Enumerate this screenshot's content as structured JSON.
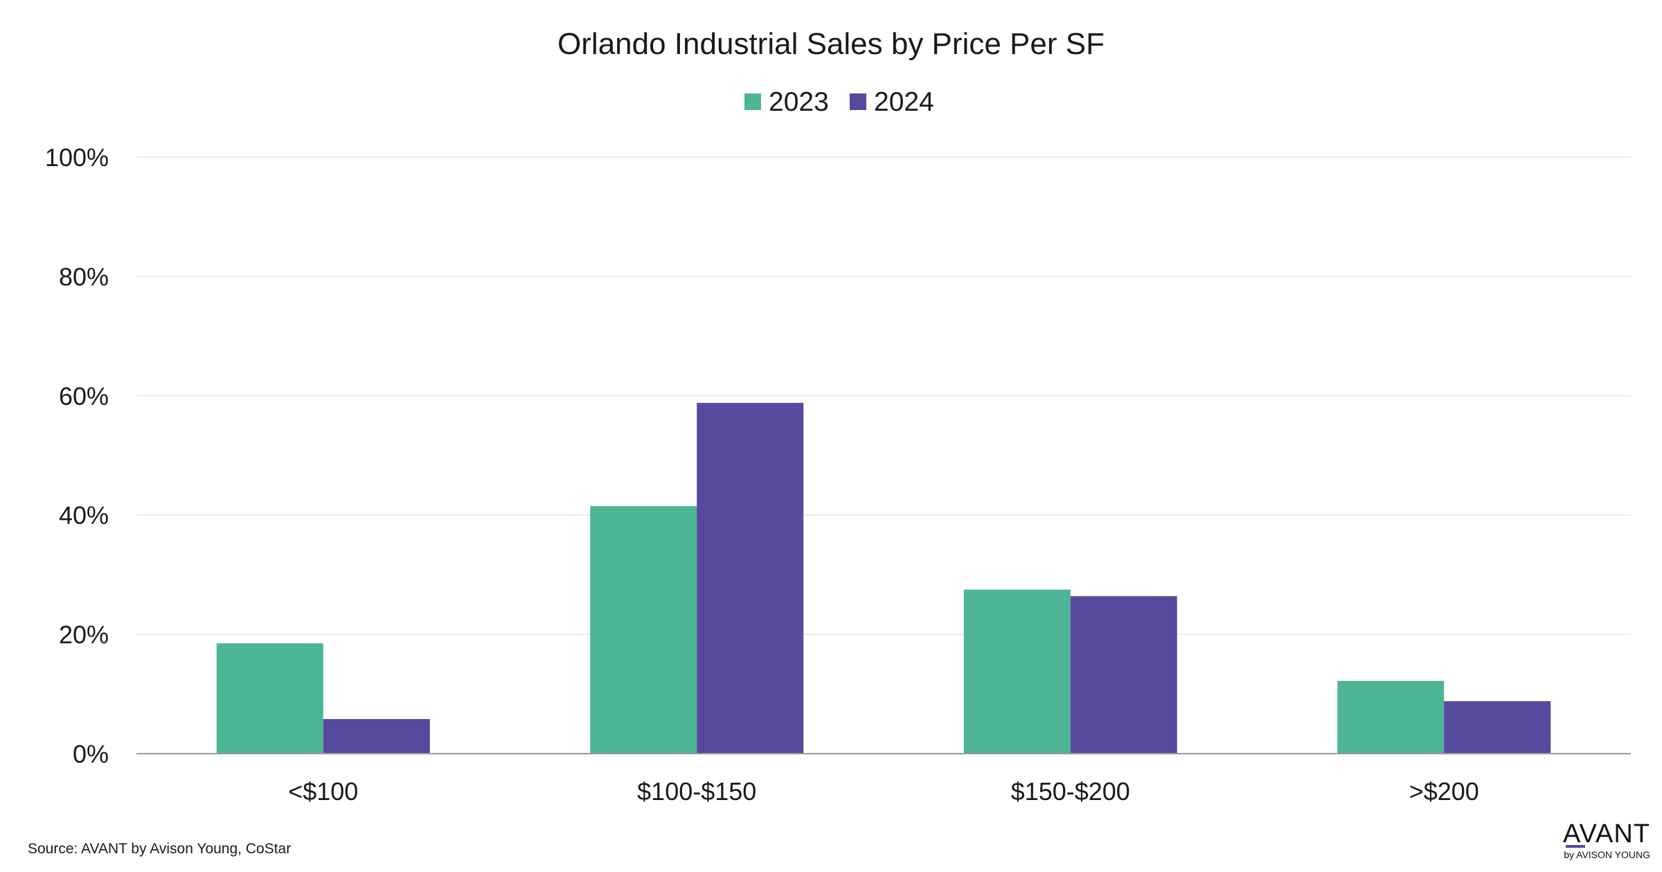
{
  "chart_data": {
    "type": "bar",
    "title": "Orlando Industrial Sales by Price Per SF",
    "categories": [
      "<$100",
      "$100-$150",
      "$150-$200",
      ">$200"
    ],
    "series": [
      {
        "name": "2023",
        "color": "#4db595",
        "values": [
          18.5,
          41.5,
          27.5,
          12.2
        ]
      },
      {
        "name": "2024",
        "color": "#56499e",
        "values": [
          5.8,
          58.8,
          26.4,
          8.8
        ]
      }
    ],
    "ylim": [
      0,
      100
    ],
    "yticks": [
      0,
      20,
      40,
      60,
      80,
      100
    ],
    "ytick_labels": [
      "0%",
      "20%",
      "40%",
      "60%",
      "80%",
      "100%"
    ],
    "xlabel": "",
    "ylabel": "",
    "grid": true,
    "legend_position": "top-center"
  },
  "footer": {
    "source": "Source: AVANT by Avison Young, CoStar"
  },
  "logo": {
    "main": "AVANT",
    "sub": "by AVISON YOUNG",
    "accent_color": "#56499e"
  }
}
